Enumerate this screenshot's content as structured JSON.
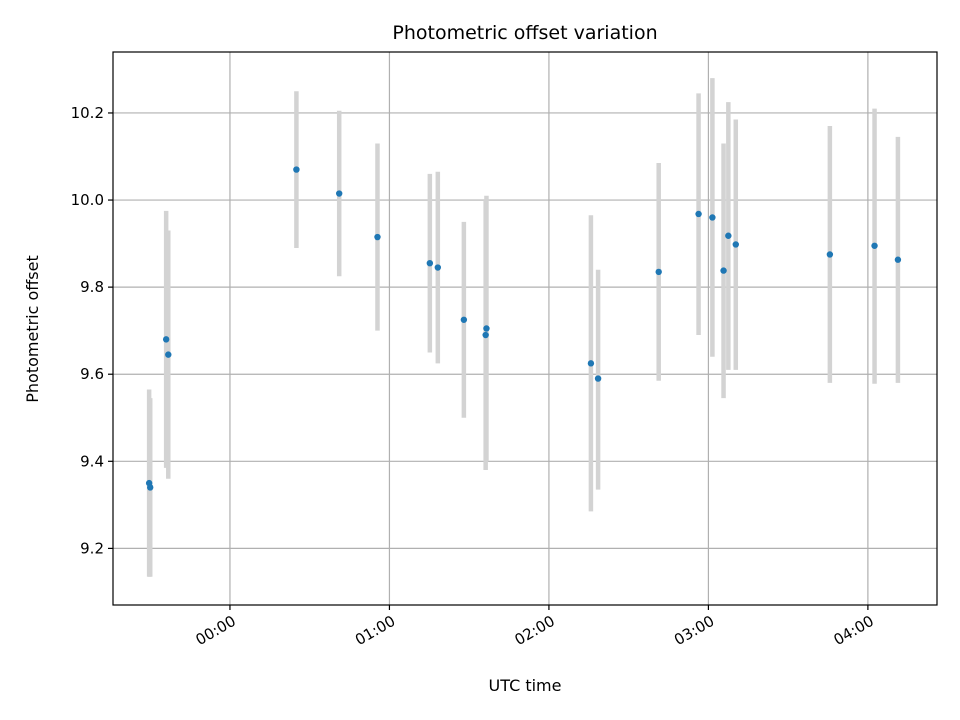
{
  "chart_data": {
    "type": "scatter",
    "title": "Photometric offset variation",
    "xlabel": "UTC time",
    "ylabel": "Photometric offset",
    "x_unit": "minutes",
    "xlim": [
      -44,
      266
    ],
    "ylim": [
      9.07,
      10.34
    ],
    "xticks": [
      {
        "value": 0,
        "label": "00:00"
      },
      {
        "value": 60,
        "label": "01:00"
      },
      {
        "value": 120,
        "label": "02:00"
      },
      {
        "value": 180,
        "label": "03:00"
      },
      {
        "value": 240,
        "label": "04:00"
      }
    ],
    "yticks": [
      {
        "value": 9.2,
        "label": "9.2"
      },
      {
        "value": 9.4,
        "label": "9.4"
      },
      {
        "value": 9.6,
        "label": "9.6"
      },
      {
        "value": 9.8,
        "label": "9.8"
      },
      {
        "value": 10.0,
        "label": "10.0"
      },
      {
        "value": 10.2,
        "label": "10.2"
      }
    ],
    "grid": true,
    "colors": {
      "marker": "#1f77b4",
      "errorbar": "#d3d3d3",
      "grid": "#b0b0b0"
    },
    "points": [
      {
        "x": -30.4,
        "y": 9.35,
        "ylow": 9.135,
        "yhigh": 9.565
      },
      {
        "x": -30.0,
        "y": 9.34,
        "ylow": 9.135,
        "yhigh": 9.545
      },
      {
        "x": -24.0,
        "y": 9.68,
        "ylow": 9.385,
        "yhigh": 9.975
      },
      {
        "x": -23.2,
        "y": 9.645,
        "ylow": 9.36,
        "yhigh": 9.93
      },
      {
        "x": 25.0,
        "y": 10.07,
        "ylow": 9.89,
        "yhigh": 10.25
      },
      {
        "x": 41.1,
        "y": 10.015,
        "ylow": 9.825,
        "yhigh": 10.205
      },
      {
        "x": 55.5,
        "y": 9.915,
        "ylow": 9.7,
        "yhigh": 10.13
      },
      {
        "x": 75.2,
        "y": 9.855,
        "ylow": 9.65,
        "yhigh": 10.06
      },
      {
        "x": 78.2,
        "y": 9.845,
        "ylow": 9.625,
        "yhigh": 10.065
      },
      {
        "x": 88.0,
        "y": 9.725,
        "ylow": 9.5,
        "yhigh": 9.95
      },
      {
        "x": 96.2,
        "y": 9.69,
        "ylow": 9.38,
        "yhigh": 10.0
      },
      {
        "x": 96.5,
        "y": 9.705,
        "ylow": 9.4,
        "yhigh": 10.01
      },
      {
        "x": 135.8,
        "y": 9.625,
        "ylow": 9.285,
        "yhigh": 9.965
      },
      {
        "x": 138.5,
        "y": 9.59,
        "ylow": 9.335,
        "yhigh": 9.84
      },
      {
        "x": 161.3,
        "y": 9.835,
        "ylow": 9.585,
        "yhigh": 10.085
      },
      {
        "x": 176.3,
        "y": 9.968,
        "ylow": 9.69,
        "yhigh": 10.245
      },
      {
        "x": 181.5,
        "y": 9.96,
        "ylow": 9.64,
        "yhigh": 10.28
      },
      {
        "x": 185.7,
        "y": 9.838,
        "ylow": 9.545,
        "yhigh": 10.13
      },
      {
        "x": 187.5,
        "y": 9.918,
        "ylow": 9.61,
        "yhigh": 10.225
      },
      {
        "x": 190.3,
        "y": 9.898,
        "ylow": 9.61,
        "yhigh": 10.185
      },
      {
        "x": 225.7,
        "y": 9.875,
        "ylow": 9.58,
        "yhigh": 10.17
      },
      {
        "x": 242.5,
        "y": 9.895,
        "ylow": 9.578,
        "yhigh": 10.21
      },
      {
        "x": 251.3,
        "y": 9.863,
        "ylow": 9.58,
        "yhigh": 10.145
      }
    ]
  }
}
